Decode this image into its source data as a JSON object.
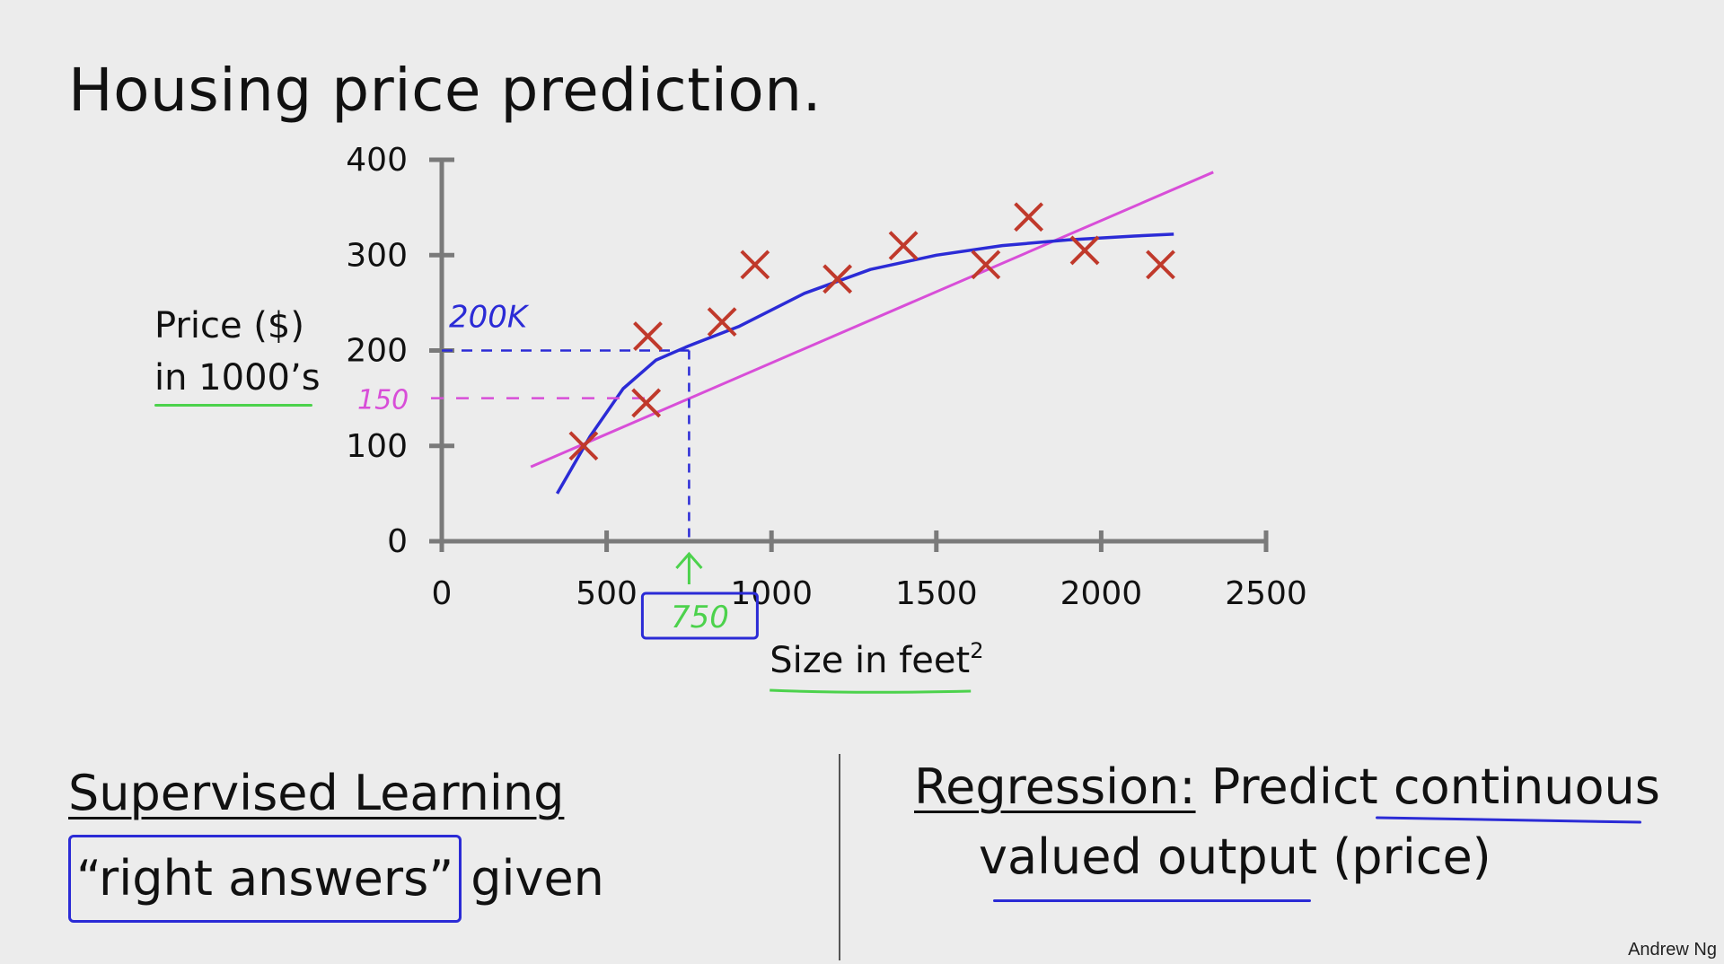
{
  "slide": {
    "title": "Housing price prediction.",
    "author": "Andrew Ng"
  },
  "chart_data": {
    "type": "scatter",
    "xlabel": "Size in feet",
    "xlabel_superscript": "2",
    "ylabel_line1": "Price ($)",
    "ylabel_line2": "in 1000’s",
    "xlim": [
      0,
      2500
    ],
    "ylim": [
      0,
      400
    ],
    "xticks": [
      0,
      500,
      1000,
      1500,
      2000,
      2500
    ],
    "yticks": [
      0,
      100,
      200,
      300,
      400
    ],
    "points": [
      {
        "x": 430,
        "y": 100
      },
      {
        "x": 620,
        "y": 145
      },
      {
        "x": 625,
        "y": 215
      },
      {
        "x": 850,
        "y": 230
      },
      {
        "x": 950,
        "y": 290
      },
      {
        "x": 1200,
        "y": 275
      },
      {
        "x": 1400,
        "y": 310
      },
      {
        "x": 1650,
        "y": 290
      },
      {
        "x": 1780,
        "y": 340
      },
      {
        "x": 1950,
        "y": 305
      },
      {
        "x": 2180,
        "y": 290
      }
    ],
    "fits": [
      {
        "kind": "linear",
        "color": "#d84ed8",
        "x": [
          270,
          2340
        ],
        "y": [
          78,
          387
        ]
      },
      {
        "kind": "quadratic",
        "color": "#2b2bd6",
        "x": [
          350,
          450,
          550,
          650,
          750,
          900,
          1100,
          1300,
          1500,
          1700,
          1900,
          2100,
          2220
        ],
        "y": [
          50,
          110,
          160,
          190,
          205,
          225,
          260,
          285,
          300,
          310,
          316,
          320,
          322
        ]
      }
    ],
    "annotations": {
      "blue_label": "200K",
      "pink_label": "150",
      "green_label": "750",
      "blue_guide": {
        "x": 750,
        "y": 200
      },
      "pink_guide": {
        "x": 620,
        "y": 150
      }
    }
  },
  "bottom_left": {
    "heading": "Supervised Learning",
    "boxed_text": "“right answers”",
    "rest_text": "given"
  },
  "bottom_right": {
    "heading": "Regression:",
    "line1_rest": "Predict continuous",
    "line2": "valued output (price)"
  },
  "colors": {
    "marker": "#c0392b",
    "axis": "#7a7a7a",
    "blue_ink": "#2b2bd6",
    "pink_ink": "#d84ed8",
    "green_ink": "#4cd24c"
  }
}
